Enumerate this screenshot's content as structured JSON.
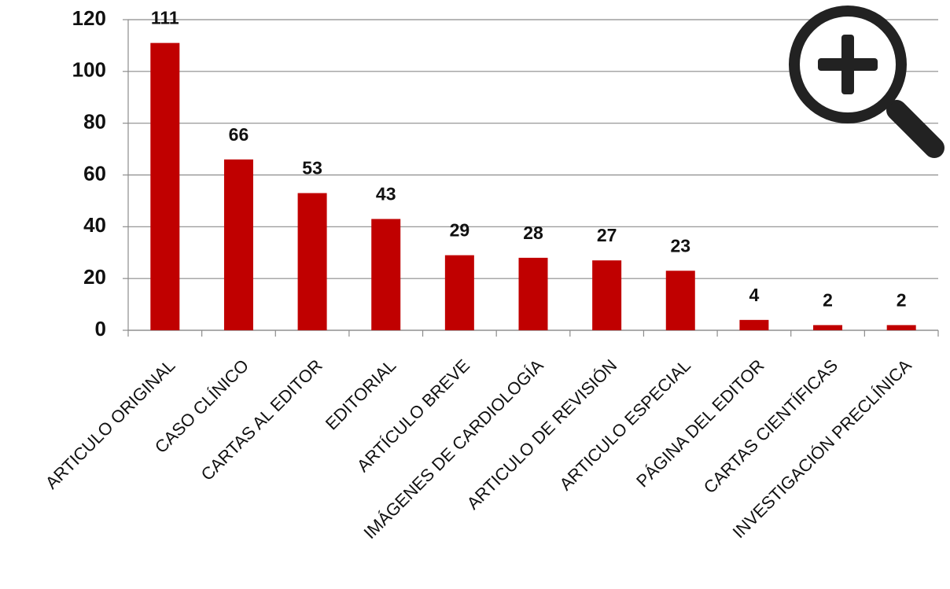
{
  "chart_data": {
    "type": "bar",
    "categories": [
      "ARTICULO ORIGINAL",
      "CASO CLÍNICO",
      "CARTAS AL EDITOR",
      "EDITORIAL",
      "ARTÍCULO BREVE",
      "IMÁGENES DE CARDIOLOGÍA",
      "ARTICULO DE REVISIÓN",
      "ARTICULO ESPECIAL",
      "PÁGINA DEL EDITOR",
      "CARTAS CIENTÍFICAS",
      "INVESTIGACIÓN PRECLÍNICA"
    ],
    "values": [
      111,
      66,
      53,
      43,
      29,
      28,
      27,
      23,
      4,
      2,
      2
    ],
    "color": "#c00000",
    "ylim": [
      0,
      120
    ],
    "yticks": [
      0,
      20,
      40,
      60,
      80,
      100,
      120
    ],
    "grid": true
  }
}
